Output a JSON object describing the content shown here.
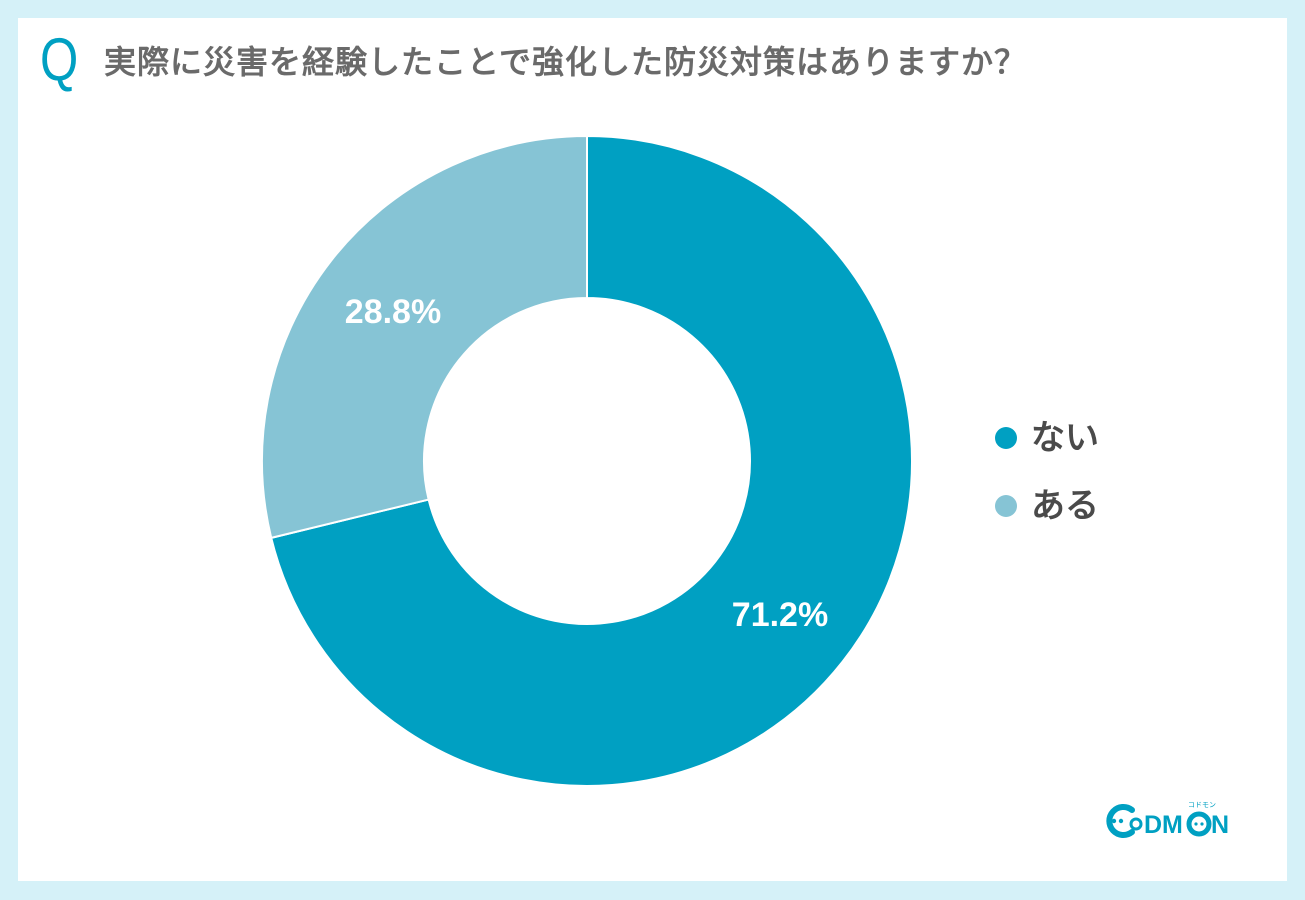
{
  "header": {
    "q_letter": "Q",
    "question": "実際に災害を経験したことで強化した防災対策はありますか？"
  },
  "colors": {
    "background_frame": "#d5f1f8",
    "card": "#ffffff",
    "accent": "#00a0c2",
    "slice_nai": "#00a0c2",
    "slice_aru": "#86c4d5",
    "title_text": "#6a6a6a",
    "legend_text": "#4a4a4a"
  },
  "legend": {
    "items": [
      {
        "label": "ない",
        "color": "#00a0c2"
      },
      {
        "label": "ある",
        "color": "#86c4d5"
      }
    ]
  },
  "labels": {
    "nai_pct": "71.2%",
    "aru_pct": "28.8%"
  },
  "logo": {
    "text": "CODMON",
    "subtext": "コドモン"
  },
  "chart_data": {
    "type": "pie",
    "variant": "donut",
    "title": "実際に災害を経験したことで強化した防災対策はありますか？",
    "categories": [
      "ない",
      "ある"
    ],
    "values": [
      71.2,
      28.8
    ],
    "unit": "%",
    "colors": [
      "#00a0c2",
      "#86c4d5"
    ],
    "start_angle": "12 o'clock, clockwise",
    "data_labels": [
      "71.2%",
      "28.8%"
    ],
    "legend_position": "right"
  }
}
